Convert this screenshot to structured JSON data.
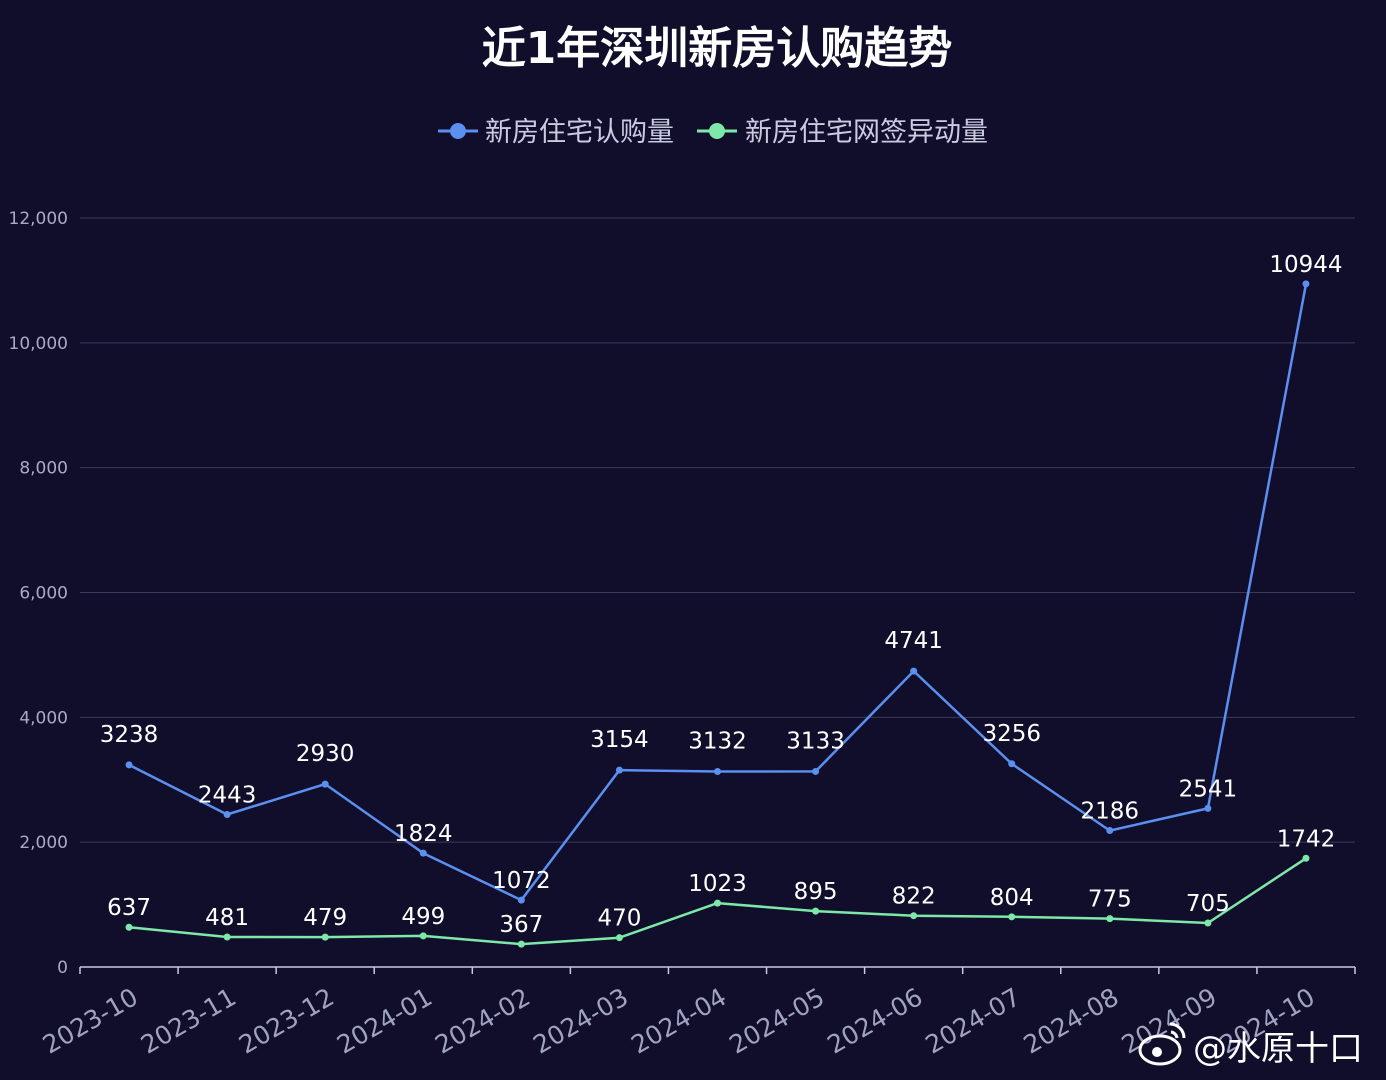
{
  "chart_data": {
    "type": "line",
    "title": "近1年深圳新房认购趋势",
    "categories": [
      "2023-10",
      "2023-11",
      "2023-12",
      "2024-01",
      "2024-02",
      "2024-03",
      "2024-04",
      "2024-05",
      "2024-06",
      "2024-07",
      "2024-08",
      "2024-09",
      "2024-10"
    ],
    "series": [
      {
        "name": "新房住宅认购量",
        "color": "#5b8ff0",
        "values": [
          3238,
          2443,
          2930,
          1824,
          1072,
          3154,
          3132,
          3133,
          4741,
          3256,
          2186,
          2541,
          10944
        ]
      },
      {
        "name": "新房住宅网签异动量",
        "color": "#7ee8a8",
        "values": [
          637,
          481,
          479,
          499,
          367,
          470,
          1023,
          895,
          822,
          804,
          775,
          705,
          1742
        ]
      }
    ],
    "yticks": [
      "0",
      "2,000",
      "4,000",
      "6,000",
      "8,000",
      "10,000",
      "12,000"
    ],
    "ylim": [
      0,
      12000
    ],
    "grid": true,
    "legend": "top-center"
  },
  "watermark": "@水原十口",
  "icons": {
    "watermark": "weibo-icon"
  }
}
